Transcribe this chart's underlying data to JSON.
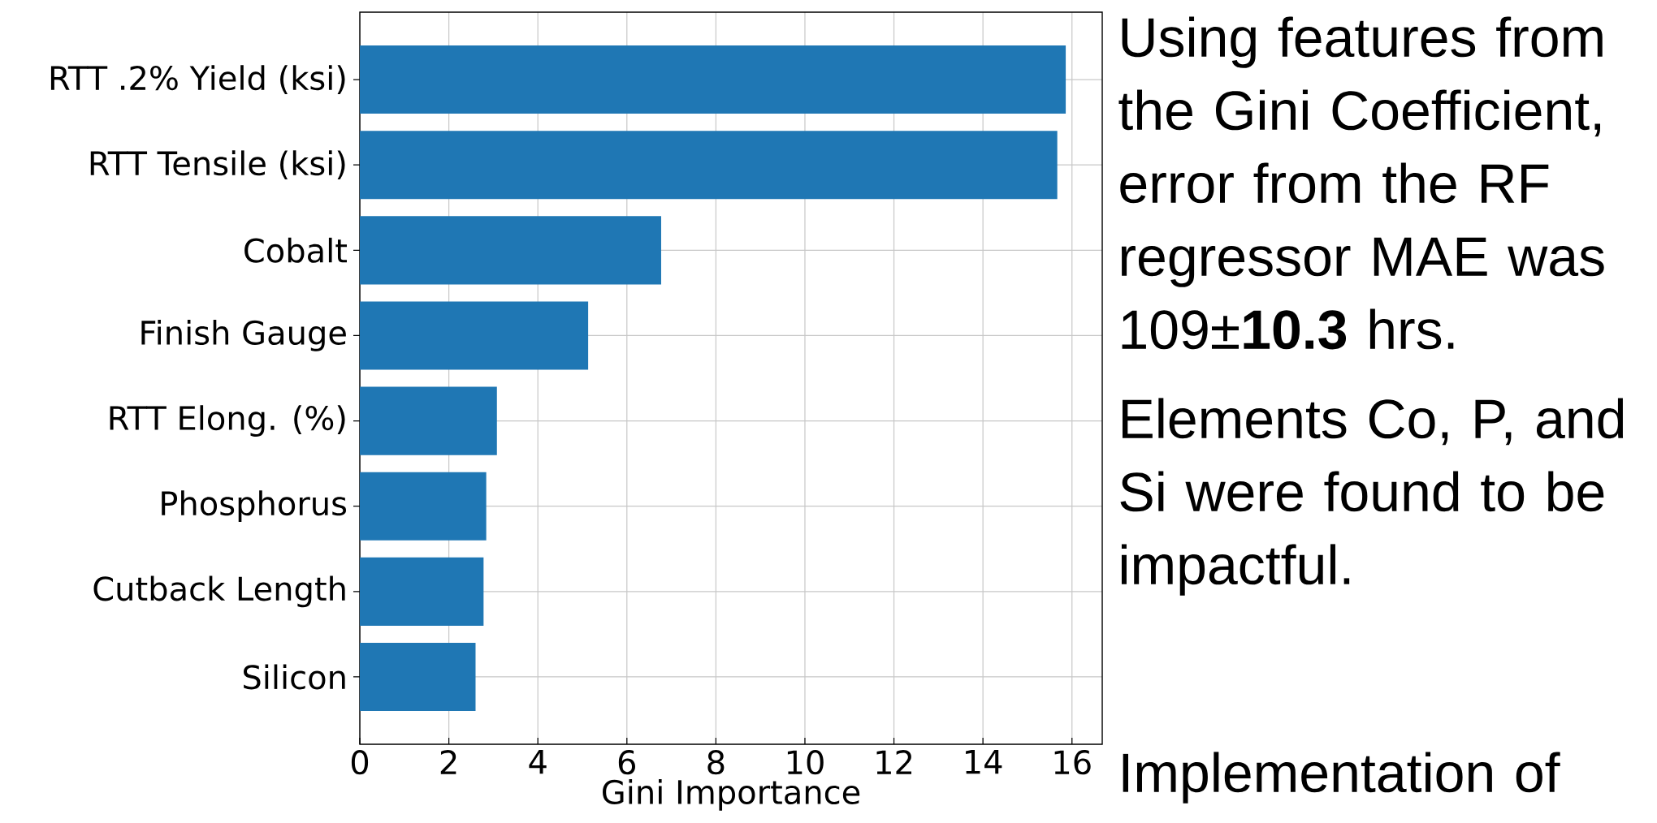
{
  "chart_data": {
    "type": "bar",
    "orientation": "horizontal",
    "xlabel": "Gini Importance",
    "categories": [
      "RTT .2% Yield (ksi)",
      "RTT Tensile (ksi)",
      "Cobalt",
      "Finish Gauge",
      "RTT Elong. (%)",
      "Phosphorus",
      "Cutback Length",
      "Silicon"
    ],
    "values": [
      15.86,
      15.67,
      6.77,
      5.13,
      3.08,
      2.84,
      2.78,
      2.6
    ],
    "color": "#1f77b4",
    "xlim": [
      0,
      16.68
    ],
    "xticks": [
      0,
      2,
      4,
      6,
      8,
      10,
      12,
      14,
      16
    ],
    "grid": true,
    "annotations": [
      "Using features from the Gini Coefficient, error from the RF regressor MAE was 109±**10.3** hrs.",
      "Elements Co, P, and Si were found to be impactful.",
      "Implementation of"
    ]
  }
}
